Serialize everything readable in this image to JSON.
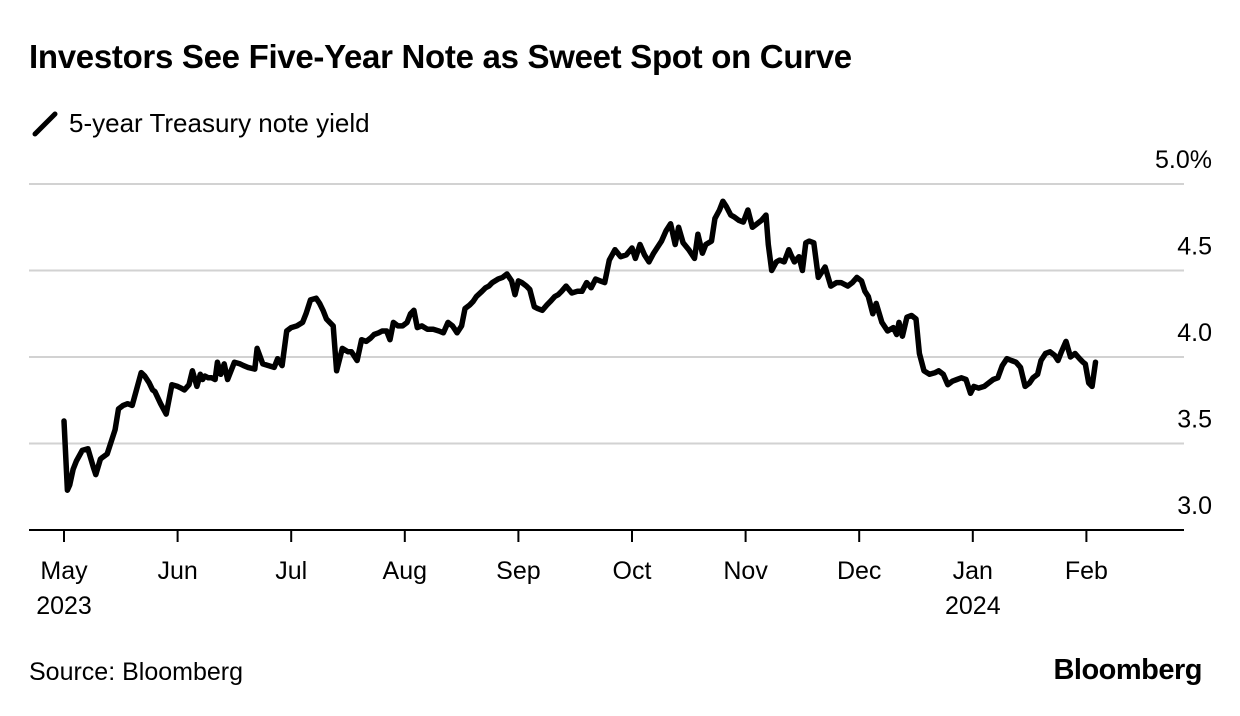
{
  "header": {
    "title": "Investors See Five-Year Note as Sweet Spot on Curve"
  },
  "footer": {
    "source": "Source: Bloomberg",
    "brand": "Bloomberg"
  },
  "chart_data": {
    "type": "line",
    "title": "Investors See Five-Year Note as Sweet Spot on Curve",
    "xlabel": "",
    "ylabel": "",
    "ylim": [
      3.0,
      5.0
    ],
    "y_ticks": [
      {
        "value": 3.0,
        "label": "3.0"
      },
      {
        "value": 3.5,
        "label": "3.5"
      },
      {
        "value": 4.0,
        "label": "4.0"
      },
      {
        "value": 4.5,
        "label": "4.5"
      },
      {
        "value": 5.0,
        "label": "5.0%"
      }
    ],
    "x_range": [
      0,
      9.55
    ],
    "x_unit": "months since May 1, 2023",
    "x_ticks": [
      {
        "value": 0,
        "label": "May",
        "label2": "2023"
      },
      {
        "value": 1,
        "label": "Jun"
      },
      {
        "value": 2,
        "label": "Jul"
      },
      {
        "value": 3,
        "label": "Aug"
      },
      {
        "value": 4,
        "label": "Sep"
      },
      {
        "value": 5,
        "label": "Oct"
      },
      {
        "value": 6,
        "label": "Nov"
      },
      {
        "value": 7,
        "label": "Dec"
      },
      {
        "value": 8,
        "label": "Jan",
        "label2": "2024"
      },
      {
        "value": 9,
        "label": "Feb"
      }
    ],
    "grid": true,
    "legend": "top-left",
    "series": [
      {
        "name": "5-year Treasury note yield",
        "color": "#000000",
        "x": [
          0.0,
          0.03,
          0.05,
          0.08,
          0.11,
          0.16,
          0.21,
          0.26,
          0.28,
          0.32,
          0.34,
          0.38,
          0.45,
          0.48,
          0.52,
          0.56,
          0.6,
          0.68,
          0.71,
          0.75,
          0.78,
          0.8,
          0.85,
          0.9,
          0.95,
          1.0,
          1.03,
          1.06,
          1.1,
          1.13,
          1.17,
          1.2,
          1.22,
          1.24,
          1.27,
          1.3,
          1.33,
          1.35,
          1.38,
          1.41,
          1.44,
          1.5,
          1.55,
          1.58,
          1.62,
          1.68,
          1.7,
          1.75,
          1.8,
          1.85,
          1.88,
          1.92,
          1.96,
          2.0,
          2.05,
          2.1,
          2.13,
          2.17,
          2.22,
          2.25,
          2.28,
          2.31,
          2.34,
          2.37,
          2.4,
          2.45,
          2.5,
          2.53,
          2.55,
          2.58,
          2.62,
          2.66,
          2.7,
          2.73,
          2.77,
          2.8,
          2.84,
          2.87,
          2.9,
          2.94,
          2.98,
          3.02,
          3.05,
          3.08,
          3.11,
          3.15,
          3.2,
          3.25,
          3.3,
          3.34,
          3.38,
          3.42,
          3.46,
          3.5,
          3.53,
          3.57,
          3.6,
          3.63,
          3.68,
          3.71,
          3.74,
          3.77,
          3.82,
          3.86,
          3.9,
          3.94,
          3.97,
          4.0,
          4.03,
          4.07,
          4.1,
          4.14,
          4.17,
          4.21,
          4.25,
          4.28,
          4.32,
          4.35,
          4.38,
          4.42,
          4.47,
          4.52,
          4.56,
          4.6,
          4.64,
          4.68,
          4.72,
          4.76,
          4.8,
          4.85,
          4.9,
          4.95,
          5.0,
          5.03,
          5.07,
          5.11,
          5.15,
          5.19,
          5.22,
          5.26,
          5.3,
          5.34,
          5.38,
          5.41,
          5.45,
          5.5,
          5.55,
          5.58,
          5.62,
          5.65,
          5.7,
          5.73,
          5.77,
          5.8,
          5.83,
          5.87,
          5.9,
          5.94,
          5.98,
          6.02,
          6.06,
          6.1,
          6.14,
          6.18,
          6.2,
          6.23,
          6.27,
          6.3,
          6.34,
          6.38,
          6.4,
          6.43,
          6.47,
          6.5,
          6.53,
          6.56,
          6.6,
          6.64,
          6.7,
          6.75,
          6.8,
          6.84,
          6.87,
          6.9,
          6.94,
          6.98,
          7.02,
          7.05,
          7.08,
          7.12,
          7.15,
          7.2,
          7.25,
          7.3,
          7.33,
          7.35,
          7.38,
          7.42,
          7.46,
          7.5,
          7.53,
          7.57,
          7.62,
          7.67,
          7.7,
          7.74,
          7.78,
          7.82,
          7.86,
          7.9,
          7.94,
          7.98,
          8.01,
          8.05,
          8.1,
          8.14,
          8.18,
          8.22,
          8.26,
          8.3,
          8.34,
          8.38,
          8.42,
          8.46,
          8.5,
          8.53,
          8.57,
          8.6,
          8.64,
          8.68,
          8.72,
          8.75,
          8.78,
          8.82,
          8.86,
          8.9,
          8.94,
          8.97,
          8.99,
          9.02,
          9.05,
          9.08
        ],
        "y": [
          3.63,
          3.23,
          3.26,
          3.35,
          3.4,
          3.46,
          3.47,
          3.36,
          3.32,
          3.41,
          3.42,
          3.44,
          3.58,
          3.7,
          3.72,
          3.73,
          3.72,
          3.91,
          3.89,
          3.85,
          3.81,
          3.8,
          3.73,
          3.67,
          3.84,
          3.83,
          3.82,
          3.81,
          3.84,
          3.92,
          3.83,
          3.9,
          3.87,
          3.89,
          3.88,
          3.88,
          3.87,
          3.97,
          3.9,
          3.96,
          3.87,
          3.97,
          3.96,
          3.95,
          3.94,
          3.93,
          4.05,
          3.96,
          3.95,
          3.94,
          3.99,
          3.95,
          4.15,
          4.17,
          4.18,
          4.2,
          4.25,
          4.33,
          4.34,
          4.31,
          4.27,
          4.22,
          4.2,
          4.18,
          3.92,
          4.05,
          4.03,
          4.03,
          4.01,
          3.98,
          4.1,
          4.09,
          4.11,
          4.13,
          4.14,
          4.15,
          4.15,
          4.1,
          4.2,
          4.18,
          4.18,
          4.2,
          4.25,
          4.27,
          4.17,
          4.18,
          4.16,
          4.16,
          4.15,
          4.14,
          4.2,
          4.18,
          4.14,
          4.18,
          4.28,
          4.3,
          4.32,
          4.35,
          4.38,
          4.4,
          4.41,
          4.43,
          4.45,
          4.46,
          4.48,
          4.44,
          4.36,
          4.44,
          4.43,
          4.41,
          4.39,
          4.29,
          4.28,
          4.27,
          4.3,
          4.32,
          4.35,
          4.36,
          4.38,
          4.41,
          4.37,
          4.38,
          4.38,
          4.43,
          4.4,
          4.45,
          4.44,
          4.43,
          4.56,
          4.62,
          4.58,
          4.59,
          4.63,
          4.57,
          4.65,
          4.59,
          4.55,
          4.6,
          4.63,
          4.67,
          4.73,
          4.77,
          4.65,
          4.75,
          4.66,
          4.62,
          4.57,
          4.71,
          4.6,
          4.65,
          4.67,
          4.8,
          4.85,
          4.9,
          4.87,
          4.82,
          4.81,
          4.79,
          4.78,
          4.85,
          4.75,
          4.77,
          4.79,
          4.82,
          4.65,
          4.5,
          4.55,
          4.56,
          4.55,
          4.62,
          4.59,
          4.55,
          4.58,
          4.5,
          4.66,
          4.67,
          4.66,
          4.46,
          4.52,
          4.41,
          4.43,
          4.43,
          4.42,
          4.41,
          4.43,
          4.46,
          4.44,
          4.38,
          4.35,
          4.25,
          4.31,
          4.2,
          4.15,
          4.17,
          4.13,
          4.2,
          4.12,
          4.23,
          4.24,
          4.22,
          4.02,
          3.92,
          3.9,
          3.91,
          3.92,
          3.9,
          3.84,
          3.86,
          3.87,
          3.88,
          3.87,
          3.79,
          3.83,
          3.82,
          3.83,
          3.85,
          3.87,
          3.88,
          3.95,
          3.99,
          3.98,
          3.97,
          3.94,
          3.83,
          3.85,
          3.88,
          3.9,
          3.98,
          4.02,
          4.03,
          4.01,
          3.98,
          4.03,
          4.09,
          4.0,
          4.02,
          3.99,
          3.97,
          3.96,
          3.85,
          3.83,
          3.97
        ]
      }
    ]
  }
}
